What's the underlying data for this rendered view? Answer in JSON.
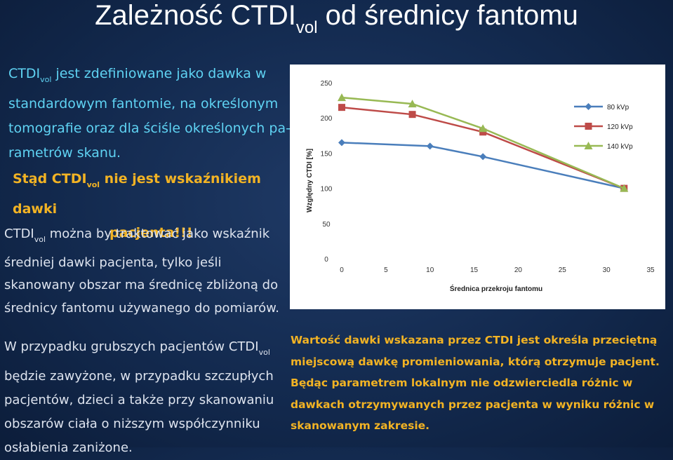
{
  "title": {
    "main": "Zależność CTDI",
    "sub": "vol",
    "rest": " od średnicy fantomu"
  },
  "para1": {
    "p1": "CTDI",
    "p1sub": "vol",
    "p2": " jest zdefiniowane jako dawka  w standardowym fantomie, na określonym tomografie oraz dla ściśle określonych pa-rametrów skanu."
  },
  "stad": {
    "p1": "Stąd CTDI",
    "p1sub": "vol",
    "p2": " nie jest wskaźnikiem dawki",
    "line2": "pacjenta!!!"
  },
  "para2": {
    "p1": "CTDI",
    "p1sub": "vol",
    "p2": " można by traktować jako wskaźnik średniej dawki pacjenta, tylko jeśli skanowany obszar ma średnicę zbliżoną do średnicy fantomu używanego do pomiarów."
  },
  "para3": {
    "p1": "W przypadku grubszych pacjentów CTDI",
    "p1sub": "vol",
    "p2": " będzie zawyżone, w przypadku szczupłych pacjentów, dzieci a także przy skanowaniu obszarów ciała o niższym współczynniku osłabienia zaniżone."
  },
  "para4": "Wartość dawki wskazana przez CTDI jest określa przeciętną miejscową dawkę promieniowania, którą otrzymuje pacjent. Będąc parametrem lokalnym nie odzwierciedla różnic w dawkach otrzymywanych przez pacjenta w wyniku różnic w skanowanym zakresie.",
  "chart_data": {
    "type": "line",
    "xlabel": "Średnica przekroju fantomu",
    "ylabel": "Względny CTDI [%]",
    "xlim": [
      0,
      35
    ],
    "ylim": [
      0,
      250
    ],
    "x_ticks": [
      0,
      5,
      10,
      15,
      20,
      25,
      30,
      35
    ],
    "y_ticks": [
      0,
      50,
      100,
      150,
      200,
      250
    ],
    "grid": false,
    "legend_position": "right",
    "series": [
      {
        "name": "80 kVp",
        "color": "#4a7ebb",
        "marker": "diamond",
        "x": [
          0,
          10,
          16,
          32
        ],
        "y": [
          165,
          160,
          145,
          100
        ]
      },
      {
        "name": "120 kVp",
        "color": "#be4b48",
        "marker": "square",
        "x": [
          0,
          8,
          16,
          32
        ],
        "y": [
          215,
          205,
          180,
          100
        ]
      },
      {
        "name": "140 kVp",
        "color": "#98b954",
        "marker": "triangle",
        "x": [
          0,
          8,
          16,
          32
        ],
        "y": [
          229,
          220,
          185,
          100
        ]
      }
    ]
  }
}
